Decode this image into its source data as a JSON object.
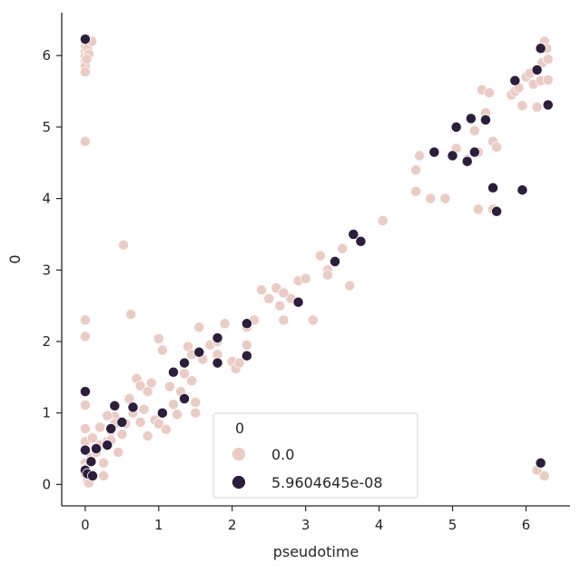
{
  "chart_data": {
    "type": "scatter",
    "xlabel": "pseudotime",
    "ylabel": "0",
    "xlim": [
      -0.32,
      6.6
    ],
    "ylim": [
      -0.3,
      6.6
    ],
    "x_ticks": [
      0,
      1,
      2,
      3,
      4,
      5,
      6
    ],
    "y_ticks": [
      0,
      1,
      2,
      3,
      4,
      5,
      6
    ],
    "legend": {
      "title": "0",
      "placement": "lower-center",
      "entries": [
        "0.0",
        "5.9604645e-08"
      ]
    },
    "colors": [
      "#ebcbc3",
      "#2d1e3e"
    ],
    "series": [
      {
        "name": "0.0",
        "points": [
          [
            0.0,
            6.23
          ],
          [
            0.0,
            6.17
          ],
          [
            0.0,
            6.12
          ],
          [
            0.0,
            6.05
          ],
          [
            0.0,
            5.98
          ],
          [
            0.0,
            5.92
          ],
          [
            0.0,
            5.85
          ],
          [
            0.0,
            5.77
          ],
          [
            0.03,
            6.1
          ],
          [
            0.05,
            6.02
          ],
          [
            0.02,
            5.95
          ],
          [
            0.09,
            6.2
          ],
          [
            0.0,
            4.8
          ],
          [
            0.0,
            2.3
          ],
          [
            0.0,
            2.07
          ],
          [
            0.0,
            1.11
          ],
          [
            0.0,
            0.78
          ],
          [
            0.0,
            0.6
          ],
          [
            0.0,
            0.3
          ],
          [
            0.0,
            0.22
          ],
          [
            0.0,
            0.15
          ],
          [
            0.03,
            0.05
          ],
          [
            0.05,
            0.02
          ],
          [
            0.08,
            0.4
          ],
          [
            0.1,
            0.65
          ],
          [
            0.15,
            0.5
          ],
          [
            0.2,
            0.55
          ],
          [
            0.25,
            0.12
          ],
          [
            0.3,
            0.6
          ],
          [
            0.35,
            0.75
          ],
          [
            0.4,
            0.95
          ],
          [
            0.45,
            0.45
          ],
          [
            0.5,
            0.7
          ],
          [
            0.55,
            0.85
          ],
          [
            0.6,
            1.2
          ],
          [
            0.65,
            1.0
          ],
          [
            0.7,
            1.48
          ],
          [
            0.75,
            1.38
          ],
          [
            0.8,
            1.05
          ],
          [
            0.85,
            1.3
          ],
          [
            0.9,
            1.42
          ],
          [
            0.95,
            0.9
          ],
          [
            1.0,
            2.04
          ],
          [
            1.05,
            1.88
          ],
          [
            1.1,
            0.77
          ],
          [
            1.15,
            1.37
          ],
          [
            1.2,
            1.12
          ],
          [
            1.3,
            1.3
          ],
          [
            1.35,
            1.55
          ],
          [
            1.4,
            1.93
          ],
          [
            1.45,
            1.45
          ],
          [
            1.5,
            1.15
          ],
          [
            1.55,
            2.2
          ],
          [
            1.6,
            1.75
          ],
          [
            1.7,
            1.95
          ],
          [
            1.8,
            2.0
          ],
          [
            1.9,
            2.25
          ],
          [
            2.0,
            1.72
          ],
          [
            2.05,
            1.62
          ],
          [
            2.1,
            1.7
          ],
          [
            2.2,
            1.95
          ],
          [
            2.3,
            2.3
          ],
          [
            2.4,
            2.72
          ],
          [
            2.5,
            2.6
          ],
          [
            2.6,
            2.75
          ],
          [
            2.65,
            2.5
          ],
          [
            2.7,
            2.3
          ],
          [
            2.8,
            2.6
          ],
          [
            2.9,
            2.85
          ],
          [
            3.1,
            2.3
          ],
          [
            3.2,
            3.2
          ],
          [
            3.3,
            3.0
          ],
          [
            3.4,
            3.1
          ],
          [
            3.5,
            3.3
          ],
          [
            3.6,
            2.78
          ],
          [
            4.05,
            3.69
          ],
          [
            4.5,
            4.1
          ],
          [
            4.5,
            4.4
          ],
          [
            4.55,
            4.6
          ],
          [
            4.7,
            4.0
          ],
          [
            4.9,
            4.0
          ],
          [
            5.05,
            4.7
          ],
          [
            5.2,
            4.55
          ],
          [
            5.3,
            4.95
          ],
          [
            5.35,
            4.65
          ],
          [
            5.4,
            5.52
          ],
          [
            5.45,
            5.2
          ],
          [
            5.5,
            5.48
          ],
          [
            5.55,
            4.8
          ],
          [
            5.6,
            4.72
          ],
          [
            5.55,
            3.85
          ],
          [
            5.35,
            3.85
          ],
          [
            5.8,
            5.45
          ],
          [
            5.85,
            5.5
          ],
          [
            5.9,
            5.55
          ],
          [
            5.95,
            5.3
          ],
          [
            6.0,
            5.7
          ],
          [
            6.05,
            5.75
          ],
          [
            6.1,
            5.6
          ],
          [
            6.15,
            5.28
          ],
          [
            6.2,
            5.65
          ],
          [
            6.22,
            5.9
          ],
          [
            6.25,
            6.2
          ],
          [
            6.28,
            6.1
          ],
          [
            6.3,
            5.95
          ],
          [
            6.3,
            5.66
          ],
          [
            6.15,
            0.2
          ],
          [
            6.25,
            0.12
          ],
          [
            0.52,
            3.35
          ],
          [
            0.62,
            2.38
          ],
          [
            0.4,
            0.85
          ],
          [
            0.35,
            0.62
          ],
          [
            0.3,
            0.96
          ],
          [
            0.2,
            0.8
          ],
          [
            0.15,
            0.45
          ],
          [
            0.25,
            0.3
          ],
          [
            0.75,
            0.87
          ],
          [
            0.85,
            0.68
          ],
          [
            1.0,
            0.85
          ],
          [
            1.25,
            0.98
          ],
          [
            1.5,
            1.0
          ],
          [
            1.45,
            1.82
          ],
          [
            1.8,
            1.82
          ],
          [
            2.2,
            2.2
          ],
          [
            2.7,
            2.68
          ],
          [
            3.0,
            2.88
          ],
          [
            3.3,
            2.93
          ]
        ]
      },
      {
        "name": "5.9604645e-08",
        "points": [
          [
            0.0,
            6.23
          ],
          [
            0.0,
            1.3
          ],
          [
            0.0,
            0.48
          ],
          [
            0.0,
            0.2
          ],
          [
            0.03,
            0.15
          ],
          [
            0.08,
            0.32
          ],
          [
            0.1,
            0.12
          ],
          [
            0.15,
            0.5
          ],
          [
            0.3,
            0.55
          ],
          [
            0.35,
            0.78
          ],
          [
            0.4,
            1.1
          ],
          [
            0.5,
            0.87
          ],
          [
            0.65,
            1.08
          ],
          [
            1.05,
            1.0
          ],
          [
            1.2,
            1.57
          ],
          [
            1.35,
            1.7
          ],
          [
            1.35,
            1.2
          ],
          [
            1.55,
            1.85
          ],
          [
            1.8,
            1.7
          ],
          [
            1.8,
            2.05
          ],
          [
            2.2,
            1.8
          ],
          [
            2.2,
            2.25
          ],
          [
            2.9,
            2.55
          ],
          [
            3.4,
            3.12
          ],
          [
            3.65,
            3.5
          ],
          [
            3.75,
            3.4
          ],
          [
            4.75,
            4.65
          ],
          [
            5.0,
            4.6
          ],
          [
            5.05,
            5.0
          ],
          [
            5.2,
            4.52
          ],
          [
            5.25,
            5.12
          ],
          [
            5.3,
            4.65
          ],
          [
            5.45,
            5.1
          ],
          [
            5.55,
            4.15
          ],
          [
            5.6,
            3.82
          ],
          [
            5.85,
            5.65
          ],
          [
            5.95,
            4.12
          ],
          [
            6.15,
            5.8
          ],
          [
            6.2,
            6.1
          ],
          [
            6.3,
            5.31
          ],
          [
            6.2,
            0.3
          ]
        ]
      }
    ]
  }
}
